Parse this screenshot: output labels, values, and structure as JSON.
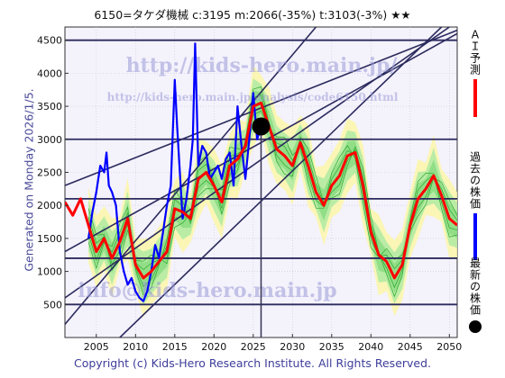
{
  "header": {
    "title": "6150=タケダ機械 c:3195 m:2066(-35%) t:3103(-3%) ★★",
    "generated": "Generated on Monday 2026/1/5.",
    "copyright": "Copyright (c) Kids-Hero Research Institute. All Rights Reserved."
  },
  "watermarks": {
    "url_main": "http://kids-hero.main.jp/",
    "url_analysis": "http://kids-hero.main.jp/analysis/code6150.html",
    "email": "info@kids-hero.main.jp"
  },
  "legend": [
    {
      "label": "ＡＩ予測",
      "color": "#ff0000",
      "marker": "line"
    },
    {
      "label": "過去の株価",
      "color": "#0000ff",
      "marker": "line"
    },
    {
      "label": "最新の株価",
      "color": "#000000",
      "marker": "dot"
    }
  ],
  "chart_data": {
    "type": "line",
    "xlim": [
      2001,
      2051
    ],
    "ylim": [
      0,
      4700
    ],
    "xticks": [
      2005,
      2010,
      2015,
      2020,
      2025,
      2030,
      2035,
      2040,
      2045,
      2050
    ],
    "yticks": [
      500,
      1000,
      1500,
      2000,
      2500,
      3000,
      3500,
      4000,
      4500
    ],
    "h_lines": [
      4500,
      3000,
      2100,
      1200,
      500
    ],
    "current_marker": {
      "x": 2026.0,
      "y": 3195
    },
    "trend_lines": [
      {
        "from": [
          2001,
          200
        ],
        "to": [
          2033,
          4700
        ]
      },
      {
        "from": [
          2001,
          600
        ],
        "to": [
          2050,
          4700
        ]
      },
      {
        "from": [
          2001,
          1300
        ],
        "to": [
          2051,
          4600
        ]
      },
      {
        "from": [
          2001,
          2300
        ],
        "to": [
          2051,
          4650
        ]
      },
      {
        "from": [
          2008,
          0
        ],
        "to": [
          2049,
          4700
        ]
      }
    ],
    "series": [
      {
        "name": "ＡＩ予測",
        "color": "#ff0000",
        "x": [
          2001,
          2002,
          2003,
          2004,
          2005,
          2006,
          2007,
          2008,
          2009,
          2010,
          2011,
          2012,
          2013,
          2014,
          2015,
          2016,
          2017,
          2018,
          2019,
          2020,
          2021,
          2022,
          2023,
          2024,
          2025,
          2026,
          2027,
          2028,
          2029,
          2030,
          2031,
          2032,
          2033,
          2034,
          2035,
          2036,
          2037,
          2038,
          2039,
          2040,
          2041,
          2042,
          2043,
          2044,
          2045,
          2046,
          2047,
          2048,
          2049,
          2050,
          2051
        ],
        "values": [
          2050,
          1850,
          2100,
          1700,
          1300,
          1500,
          1200,
          1450,
          1800,
          1100,
          900,
          1000,
          1150,
          1300,
          1950,
          1900,
          1800,
          2400,
          2500,
          2300,
          2050,
          2600,
          2700,
          2900,
          3500,
          3550,
          3200,
          2850,
          2750,
          2600,
          2950,
          2600,
          2200,
          2000,
          2300,
          2450,
          2750,
          2800,
          2300,
          1600,
          1250,
          1150,
          900,
          1100,
          1700,
          2100,
          2250,
          2450,
          2150,
          1800,
          1700
        ]
      },
      {
        "name": "過去の株価",
        "color": "#0000ff",
        "x": [
          2004,
          2004.5,
          2005,
          2005.5,
          2006,
          2006.3,
          2006.6,
          2007,
          2007.5,
          2008,
          2008.5,
          2009,
          2009.5,
          2010,
          2010.5,
          2011,
          2011.5,
          2012,
          2012.5,
          2013,
          2013.5,
          2014,
          2014.5,
          2015,
          2015.3,
          2015.6,
          2016,
          2016.5,
          2017,
          2017.3,
          2017.6,
          2018,
          2018.5,
          2019,
          2019.5,
          2020,
          2020.5,
          2021,
          2021.5,
          2022,
          2022.5,
          2023,
          2023.5,
          2024,
          2024.5,
          2025,
          2025.5,
          2026
        ],
        "values": [
          1500,
          1900,
          2200,
          2600,
          2500,
          2800,
          2300,
          2200,
          2000,
          1300,
          1000,
          800,
          900,
          700,
          600,
          550,
          700,
          1000,
          1400,
          1200,
          1600,
          2000,
          2300,
          3900,
          3200,
          2600,
          1800,
          2100,
          2600,
          3000,
          4450,
          2600,
          2900,
          2800,
          2400,
          2500,
          2600,
          2400,
          2700,
          2800,
          2300,
          3500,
          2900,
          2400,
          3000,
          3700,
          3000,
          3195
        ]
      }
    ]
  }
}
